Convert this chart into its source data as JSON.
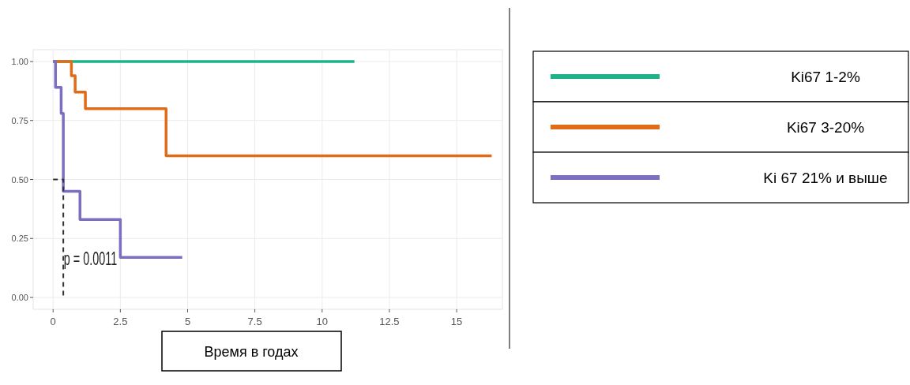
{
  "chart_data": {
    "type": "step",
    "xlabel": "Время в годах",
    "xlim": [
      -0.74,
      16.7
    ],
    "ylim": [
      -0.05,
      1.05
    ],
    "xticks": [
      0,
      2.5,
      5,
      7.5,
      10,
      12.5,
      15
    ],
    "yticks": [
      {
        "value": 0,
        "label": "0.00"
      },
      {
        "value": 0.25,
        "label": "0.25"
      },
      {
        "value": 0.5,
        "label": "0.50"
      },
      {
        "value": 0.75,
        "label": "0.75"
      },
      {
        "value": 1,
        "label": "1.00"
      }
    ],
    "grid": true,
    "legend": "right",
    "marker": "none",
    "series": [
      {
        "name": "Ki67 1-2%",
        "color": "#1db389",
        "x": [
          0,
          11.2
        ],
        "values": [
          1,
          1
        ]
      },
      {
        "name": "Ki67 3-20%",
        "color": "#e06c1a",
        "x": [
          0,
          0.68,
          0.82,
          1.2,
          4.2,
          16.3
        ],
        "values": [
          1,
          0.94,
          0.87,
          0.8,
          0.6,
          0.6
        ]
      },
      {
        "name": "Ki 67 21% и выше",
        "color": "#7b6fc0",
        "x": [
          0,
          0.09,
          0.3,
          0.38,
          1.0,
          2.5,
          4.8
        ],
        "values": [
          1,
          0.89,
          0.78,
          0.45,
          0.33,
          0.17,
          0.17
        ]
      },
      {
        "type": "line",
        "color": "#333333",
        "line_style": "dashed",
        "x": [
          0,
          0.38,
          0.38
        ],
        "values": [
          0.5,
          0.5,
          0
        ]
      }
    ],
    "annotations": [
      "p = 0.0011"
    ]
  }
}
